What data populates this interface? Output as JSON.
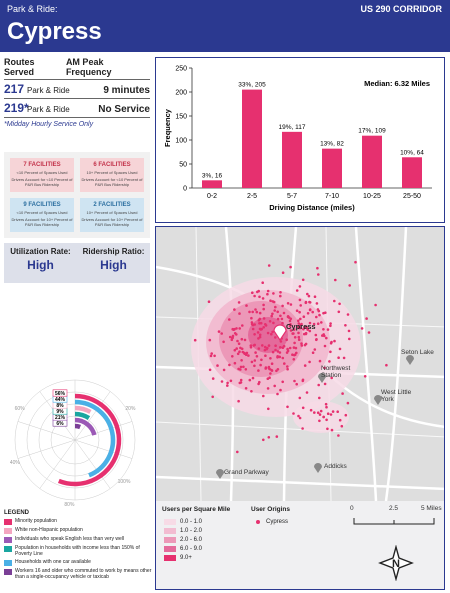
{
  "header": {
    "kicker": "Park & Ride:",
    "corridor": "US 290 CORRIDOR",
    "title": "Cypress"
  },
  "routes": {
    "col_routes": "Routes Served",
    "col_freq": "AM Peak Frequency",
    "rows": [
      {
        "num": "217",
        "label": "Park & Ride",
        "freq": "9 minutes"
      },
      {
        "num": "219*",
        "label": "Park & Ride",
        "freq": "No Service"
      }
    ],
    "note": "*Midday Hourly Service Only"
  },
  "facilities": [
    {
      "title": "7 FACILITIES",
      "sub1": "<10 Percent of Spaces Used",
      "sub2": "Drivers Account for <10 Percent of P&R Bus Ridership"
    },
    {
      "title": "6 FACILITIES",
      "sub1": "10+ Percent of Spaces Used",
      "sub2": "Drivers Account for <10 Percent of P&R Bus Ridership"
    },
    {
      "title": "9 FACILITIES",
      "sub1": "<10 Percent of Spaces Used",
      "sub2": "Drivers Account for 10+ Percent of P&R Bus Ridership"
    },
    {
      "title": "2 FACILITIES",
      "sub1": "10+ Percent of Spaces Used",
      "sub2": "Drivers Account for 10+ Percent of P&R Bus Ridership"
    }
  ],
  "metrics": {
    "utilization_label": "Utilization Rate:",
    "utilization_value": "High",
    "ridership_label": "Ridership Ratio:",
    "ridership_value": "High"
  },
  "chart_data": {
    "type": "bar",
    "categories": [
      "0-2",
      "2-5",
      "5-7",
      "7-10",
      "10-25",
      "25-50"
    ],
    "values": [
      16,
      205,
      117,
      82,
      109,
      64
    ],
    "data_labels": [
      "3%, 16",
      "33%, 205",
      "19%, 117",
      "13%, 82",
      "17%, 109",
      "10%, 64"
    ],
    "xlabel": "Driving Distance (miles)",
    "ylabel": "Frequency",
    "ylim": [
      0,
      250
    ],
    "yticks": [
      0,
      50,
      100,
      150,
      200,
      250
    ],
    "annotation": "Median: 6.32 Miles",
    "bar_color": "#e6306f"
  },
  "radial": {
    "labels": [
      "6%",
      "21%",
      "9%",
      "8%",
      "44%",
      "56%"
    ],
    "values": [
      6,
      21,
      9,
      8,
      44,
      56
    ],
    "colors": [
      "#7a3f96",
      "#9b59b6",
      "#1aa6a0",
      "#f4a6c0",
      "#4ab0e6",
      "#e6306f"
    ],
    "tick_labels": [
      "60%",
      "80%",
      "100%",
      "20%",
      "40%"
    ]
  },
  "legend": {
    "title": "LEGEND",
    "items": [
      {
        "label": "Minority population",
        "color": "#e6306f"
      },
      {
        "label": "White non-Hispanic population",
        "color": "#f4a6c0"
      },
      {
        "label": "Individuals who speak English less than very well",
        "color": "#9b59b6"
      },
      {
        "label": "Population in households with income less than 150% of Poverty Line",
        "color": "#1aa6a0"
      },
      {
        "label": "Households with one car available",
        "color": "#4ab0e6"
      },
      {
        "label": "Workers 16 and older who commuted to work by means other than a single-occupancy vehicle or taxicab",
        "color": "#7a3f96"
      }
    ]
  },
  "map": {
    "places": [
      "Cypress",
      "Northwest Station",
      "Seton Lake",
      "West Little York",
      "Grand Parkway",
      "Addicks"
    ],
    "legend_density_title": "Users per Square Mile",
    "density_bins": [
      {
        "label": "0.0 - 1.0",
        "color": "#f7dbe6"
      },
      {
        "label": "1.0 - 2.0",
        "color": "#f2bcd1"
      },
      {
        "label": "2.0 - 6.0",
        "color": "#ec98b8"
      },
      {
        "label": "6.0 - 9.0",
        "color": "#e46a9b"
      },
      {
        "label": "9.0+",
        "color": "#e6306f"
      }
    ],
    "legend_origin_title": "User Origins",
    "origin_label": "Cypress",
    "scale_labels": [
      "0",
      "2.5",
      "5 Miles"
    ],
    "north": "N"
  }
}
